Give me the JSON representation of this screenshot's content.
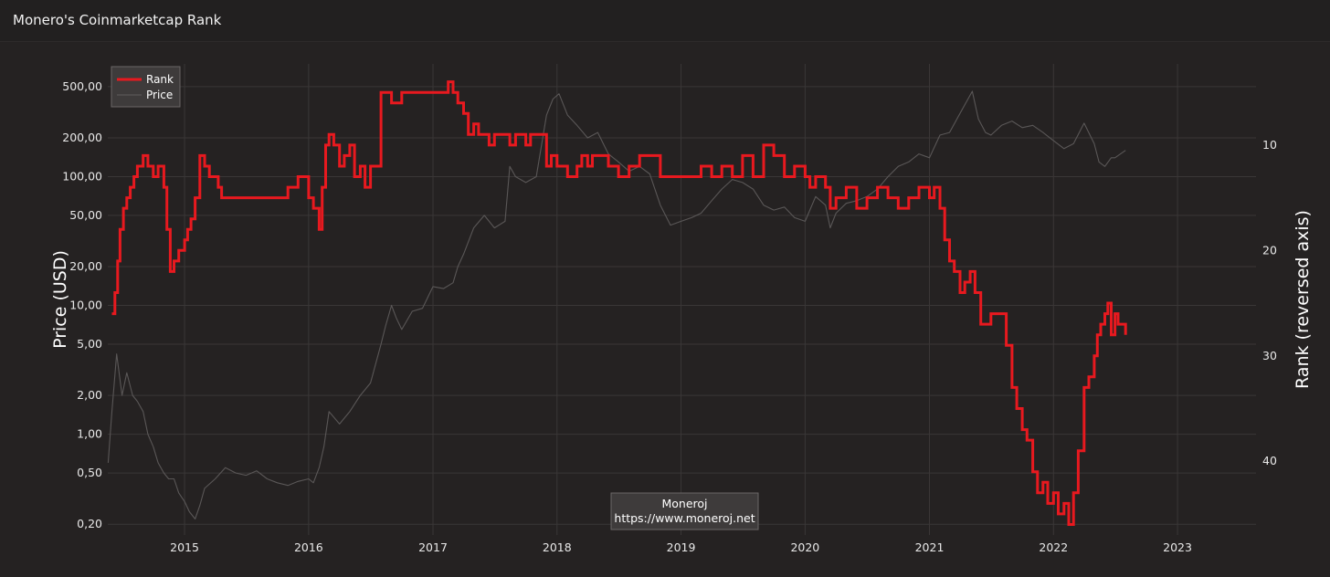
{
  "header": {
    "title": "Monero's Coinmarketcap Rank"
  },
  "chart_data": {
    "type": "line",
    "title": "Monero's Coinmarketcap Rank",
    "ylabel": "Price (USD)",
    "y2label": "Rank (reversed axis)",
    "xlabel": "",
    "x_range": [
      "2014-05-20",
      "2023-08-20"
    ],
    "x_ticks": [
      "2015",
      "2016",
      "2017",
      "2018",
      "2019",
      "2020",
      "2021",
      "2022",
      "2023"
    ],
    "y_scale": "log",
    "ylim": [
      0.165,
      750
    ],
    "y_ticks": [
      {
        "value": 500,
        "label": "500,00"
      },
      {
        "value": 200,
        "label": "200,00"
      },
      {
        "value": 100,
        "label": "100,00"
      },
      {
        "value": 50,
        "label": "50,00"
      },
      {
        "value": 20,
        "label": "20,00"
      },
      {
        "value": 10,
        "label": "10,00"
      },
      {
        "value": 5,
        "label": "5,00"
      },
      {
        "value": 2,
        "label": "2,00"
      },
      {
        "value": 1,
        "label": "1,00"
      },
      {
        "value": 0.5,
        "label": "0,50"
      },
      {
        "value": 0.2,
        "label": "0,20"
      }
    ],
    "y2_reversed": true,
    "y2lim": [
      2.3,
      47.0
    ],
    "y2_ticks": [
      10,
      20,
      30,
      40
    ],
    "grid": true,
    "legend_position": "top-left",
    "annotation": {
      "lines": [
        "Moneroj",
        "https://www.moneroj.net"
      ],
      "position": "bottom-center"
    },
    "colors": {
      "rank": "#e8191f",
      "price": "#5a5757",
      "background": "#252222",
      "grid": "#3a3737"
    },
    "series": [
      {
        "name": "Rank",
        "axis": "right",
        "step": true,
        "x": [
          "2014-06-01",
          "2014-06-10",
          "2014-06-18",
          "2014-06-25",
          "2014-07-05",
          "2014-07-15",
          "2014-07-25",
          "2014-08-05",
          "2014-08-15",
          "2014-09-01",
          "2014-09-15",
          "2014-10-01",
          "2014-10-15",
          "2014-11-01",
          "2014-11-10",
          "2014-11-20",
          "2014-12-01",
          "2014-12-15",
          "2015-01-01",
          "2015-01-10",
          "2015-01-20",
          "2015-02-01",
          "2015-02-15",
          "2015-03-01",
          "2015-03-15",
          "2015-04-01",
          "2015-04-10",
          "2015-04-20",
          "2015-05-01",
          "2015-06-01",
          "2015-07-01",
          "2015-08-01",
          "2015-09-01",
          "2015-10-01",
          "2015-11-01",
          "2015-12-01",
          "2016-01-01",
          "2016-01-15",
          "2016-02-01",
          "2016-02-10",
          "2016-02-20",
          "2016-03-01",
          "2016-03-15",
          "2016-04-01",
          "2016-04-15",
          "2016-05-01",
          "2016-05-15",
          "2016-06-01",
          "2016-06-15",
          "2016-07-01",
          "2016-08-01",
          "2016-08-15",
          "2016-09-01",
          "2016-10-01",
          "2016-11-01",
          "2016-12-01",
          "2017-01-01",
          "2017-02-01",
          "2017-02-15",
          "2017-03-01",
          "2017-03-15",
          "2017-04-01",
          "2017-04-15",
          "2017-05-01",
          "2017-05-15",
          "2017-06-01",
          "2017-06-15",
          "2017-07-01",
          "2017-08-01",
          "2017-08-15",
          "2017-09-01",
          "2017-09-15",
          "2017-10-01",
          "2017-10-15",
          "2017-11-01",
          "2017-11-15",
          "2017-12-01",
          "2017-12-15",
          "2018-01-01",
          "2018-02-01",
          "2018-03-01",
          "2018-03-15",
          "2018-04-01",
          "2018-04-15",
          "2018-05-01",
          "2018-06-01",
          "2018-07-01",
          "2018-08-01",
          "2018-09-01",
          "2018-10-01",
          "2018-11-01",
          "2018-12-01",
          "2019-01-01",
          "2019-02-01",
          "2019-03-01",
          "2019-04-01",
          "2019-05-01",
          "2019-06-01",
          "2019-07-01",
          "2019-08-01",
          "2019-09-01",
          "2019-10-01",
          "2019-11-01",
          "2019-12-01",
          "2020-01-01",
          "2020-01-15",
          "2020-02-01",
          "2020-03-01",
          "2020-03-15",
          "2020-04-01",
          "2020-05-01",
          "2020-06-01",
          "2020-07-01",
          "2020-08-01",
          "2020-09-01",
          "2020-10-01",
          "2020-11-01",
          "2020-12-01",
          "2021-01-01",
          "2021-01-15",
          "2021-02-01",
          "2021-02-15",
          "2021-03-01",
          "2021-03-15",
          "2021-04-01",
          "2021-04-15",
          "2021-05-01",
          "2021-05-15",
          "2021-06-01",
          "2021-07-01",
          "2021-08-01",
          "2021-08-15",
          "2021-09-01",
          "2021-09-15",
          "2021-10-01",
          "2021-10-15",
          "2021-11-01",
          "2021-11-15",
          "2021-12-01",
          "2021-12-15",
          "2022-01-01",
          "2022-01-15",
          "2022-02-01",
          "2022-02-15",
          "2022-03-01",
          "2022-03-15",
          "2022-04-01",
          "2022-04-15",
          "2022-05-01",
          "2022-05-10",
          "2022-05-20",
          "2022-06-01",
          "2022-06-10",
          "2022-06-20",
          "2022-07-01",
          "2022-07-10",
          "2022-07-20",
          "2022-08-01"
        ],
        "values": [
          26,
          24,
          21,
          18,
          16,
          15,
          14,
          13,
          12,
          11,
          12,
          13,
          12,
          14,
          18,
          22,
          21,
          20,
          19,
          18,
          17,
          15,
          11,
          12,
          13,
          13,
          14,
          15,
          15,
          15,
          15,
          15,
          15,
          15,
          14,
          13,
          15,
          16,
          18,
          14,
          10,
          9,
          10,
          12,
          11,
          10,
          13,
          12,
          14,
          12,
          5,
          5,
          6,
          5,
          5,
          5,
          5,
          5,
          4,
          5,
          6,
          7,
          9,
          8,
          9,
          9,
          10,
          9,
          9,
          10,
          9,
          9,
          10,
          9,
          9,
          9,
          12,
          11,
          12,
          13,
          12,
          11,
          12,
          11,
          11,
          12,
          13,
          12,
          11,
          11,
          13,
          13,
          13,
          13,
          12,
          13,
          12,
          13,
          11,
          13,
          10,
          11,
          13,
          12,
          13,
          14,
          13,
          14,
          16,
          15,
          14,
          16,
          15,
          14,
          15,
          16,
          15,
          14,
          15,
          14,
          16,
          19,
          21,
          22,
          24,
          23,
          22,
          24,
          27,
          26,
          26,
          29,
          33,
          35,
          37,
          38,
          41,
          43,
          42,
          44,
          43,
          45,
          44,
          46,
          43,
          39,
          33,
          32,
          30,
          28,
          27,
          26,
          25,
          28,
          26,
          27,
          27,
          28
        ]
      },
      {
        "name": "Price",
        "axis": "left",
        "x": [
          "2014-05-21",
          "2014-06-01",
          "2014-06-15",
          "2014-07-01",
          "2014-07-15",
          "2014-08-01",
          "2014-08-15",
          "2014-09-01",
          "2014-09-15",
          "2014-10-01",
          "2014-10-15",
          "2014-11-01",
          "2014-11-15",
          "2014-12-01",
          "2014-12-15",
          "2015-01-01",
          "2015-01-15",
          "2015-02-01",
          "2015-02-15",
          "2015-03-01",
          "2015-04-01",
          "2015-05-01",
          "2015-06-01",
          "2015-07-01",
          "2015-08-01",
          "2015-09-01",
          "2015-10-01",
          "2015-11-01",
          "2015-12-01",
          "2016-01-01",
          "2016-01-15",
          "2016-02-01",
          "2016-02-15",
          "2016-03-01",
          "2016-04-01",
          "2016-05-01",
          "2016-06-01",
          "2016-07-01",
          "2016-08-01",
          "2016-08-15",
          "2016-09-01",
          "2016-09-15",
          "2016-10-01",
          "2016-11-01",
          "2016-12-01",
          "2017-01-01",
          "2017-02-01",
          "2017-03-01",
          "2017-03-15",
          "2017-04-01",
          "2017-05-01",
          "2017-06-01",
          "2017-07-01",
          "2017-08-01",
          "2017-08-15",
          "2017-09-01",
          "2017-10-01",
          "2017-11-01",
          "2017-12-01",
          "2017-12-20",
          "2018-01-07",
          "2018-02-01",
          "2018-03-01",
          "2018-04-01",
          "2018-05-01",
          "2018-06-01",
          "2018-07-01",
          "2018-08-01",
          "2018-09-01",
          "2018-10-01",
          "2018-11-01",
          "2018-12-01",
          "2019-01-01",
          "2019-02-01",
          "2019-03-01",
          "2019-04-01",
          "2019-05-01",
          "2019-06-01",
          "2019-07-01",
          "2019-08-01",
          "2019-09-01",
          "2019-10-01",
          "2019-11-01",
          "2019-12-01",
          "2020-01-01",
          "2020-02-01",
          "2020-03-01",
          "2020-03-15",
          "2020-04-01",
          "2020-05-01",
          "2020-06-01",
          "2020-07-01",
          "2020-08-01",
          "2020-09-01",
          "2020-10-01",
          "2020-11-01",
          "2020-12-01",
          "2021-01-01",
          "2021-02-01",
          "2021-03-01",
          "2021-04-01",
          "2021-05-07",
          "2021-05-25",
          "2021-06-15",
          "2021-07-01",
          "2021-08-01",
          "2021-09-01",
          "2021-10-01",
          "2021-11-01",
          "2021-12-01",
          "2022-01-01",
          "2022-02-01",
          "2022-03-01",
          "2022-04-01",
          "2022-05-01",
          "2022-05-15",
          "2022-06-01",
          "2022-06-20",
          "2022-07-01",
          "2022-08-01"
        ],
        "values": [
          0.6,
          1.5,
          4.2,
          2.0,
          3.0,
          2.0,
          1.8,
          1.5,
          1.0,
          0.8,
          0.6,
          0.5,
          0.45,
          0.45,
          0.35,
          0.3,
          0.25,
          0.22,
          0.28,
          0.38,
          0.45,
          0.55,
          0.5,
          0.48,
          0.52,
          0.45,
          0.42,
          0.4,
          0.43,
          0.45,
          0.42,
          0.55,
          0.8,
          1.5,
          1.2,
          1.5,
          2.0,
          2.5,
          5.0,
          7.0,
          10.0,
          8.0,
          6.5,
          9.0,
          9.5,
          14.0,
          13.5,
          15.0,
          20.0,
          25.0,
          40.0,
          50.0,
          40.0,
          45.0,
          120.0,
          100.0,
          90.0,
          100.0,
          300.0,
          400.0,
          440.0,
          300.0,
          250.0,
          200.0,
          220.0,
          150.0,
          130.0,
          110.0,
          120.0,
          105.0,
          60.0,
          42.0,
          45.0,
          48.0,
          52.0,
          65.0,
          80.0,
          95.0,
          90.0,
          80.0,
          60.0,
          55.0,
          58.0,
          48.0,
          45.0,
          70.0,
          60.0,
          40.0,
          52.0,
          62.0,
          65.0,
          70.0,
          80.0,
          100.0,
          120.0,
          130.0,
          150.0,
          140.0,
          210.0,
          220.0,
          310.0,
          460.0,
          280.0,
          220.0,
          210.0,
          250.0,
          270.0,
          240.0,
          250.0,
          220.0,
          190.0,
          165.0,
          180.0,
          260.0,
          180.0,
          130.0,
          120.0,
          140.0,
          140.0,
          160.0
        ]
      }
    ]
  }
}
